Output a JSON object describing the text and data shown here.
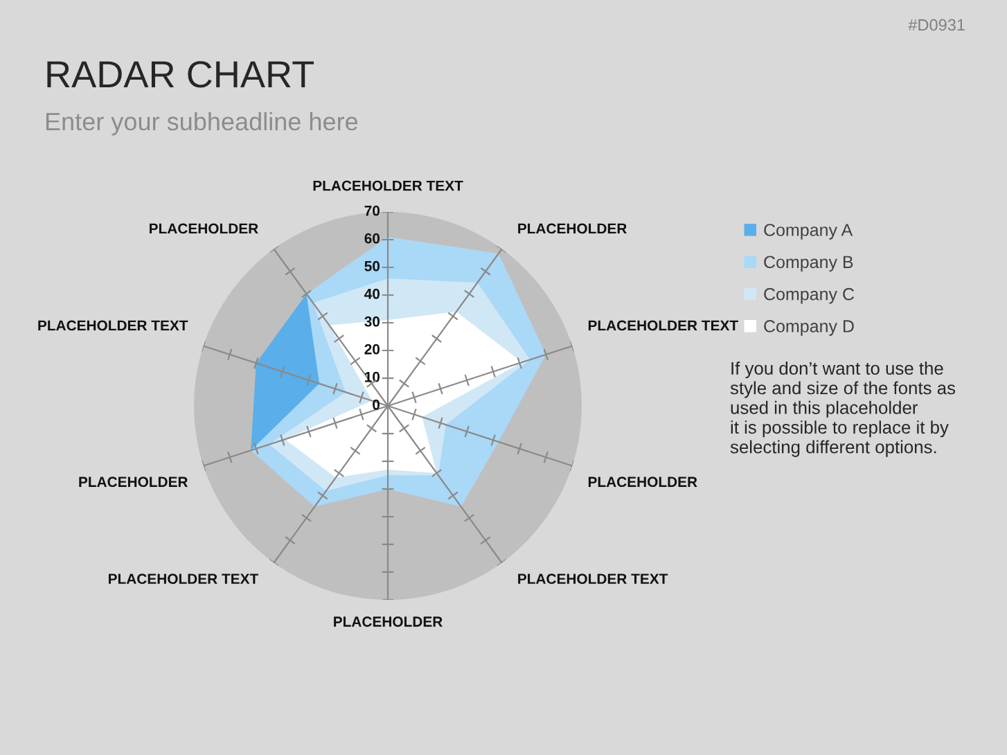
{
  "chart_data": {
    "type": "radar",
    "title": "RADAR CHART",
    "subtitle": "Enter your subheadline here",
    "categories": [
      "PLACEHOLDER TEXT",
      "PLACEHOLDER",
      "PLACEHOLDER TEXT",
      "PLACEHOLDER",
      "PLACEHOLDER TEXT",
      "PLACEHOLDER",
      "PLACEHOLDER TEXT",
      "PLACEHOLDER",
      "PLACEHOLDER TEXT",
      "PLACEHOLDER"
    ],
    "series": [
      {
        "name": "Company A",
        "color": "#5aaeea",
        "values": [
          null,
          null,
          null,
          null,
          null,
          null,
          null,
          52,
          50,
          50
        ]
      },
      {
        "name": "Company B",
        "color": "#aad8f7",
        "values": [
          61,
          68,
          60,
          42,
          45,
          30,
          45,
          52,
          26,
          50
        ]
      },
      {
        "name": "Company C",
        "color": "#d0e7f6",
        "values": [
          46,
          55,
          54,
          22,
          31,
          25,
          38,
          45,
          16,
          46
        ]
      },
      {
        "name": "Company D",
        "color": "#ffffff",
        "values": [
          31,
          42,
          51,
          13,
          30,
          23,
          32,
          39,
          6,
          36
        ]
      }
    ],
    "ylim": [
      0,
      70
    ],
    "yticks": [
      0,
      10,
      20,
      30,
      40,
      50,
      60,
      70
    ],
    "grid": "x",
    "legend": "right",
    "annotations": [
      "#D0931",
      "If you don’t want to use the\nstyle and size of the fonts as\nused in this placeholder\nit is possible to replace it by\nselecting different options."
    ]
  }
}
